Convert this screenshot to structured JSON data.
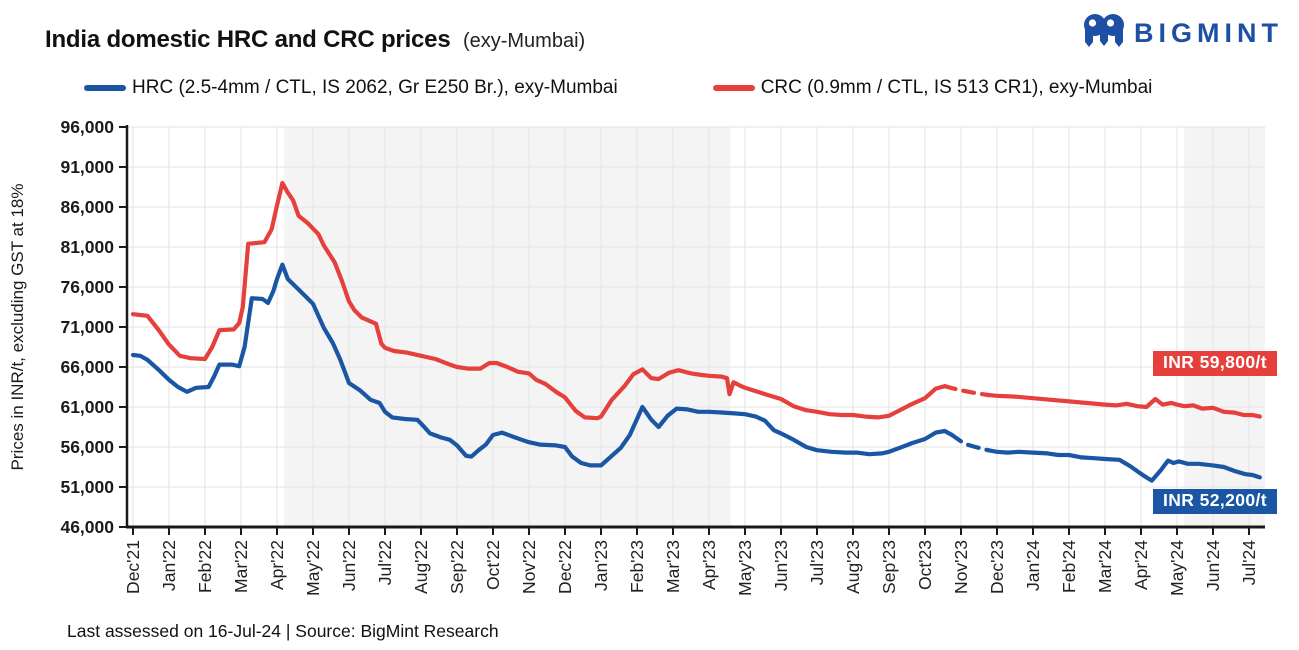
{
  "header": {
    "title": "India domestic HRC and CRC prices",
    "title_suffix": "(exy-Mumbai)",
    "brand": "BIGMINT"
  },
  "legend": {
    "items": [
      {
        "label": "HRC (2.5-4mm / CTL, IS 2062, Gr E250 Br.), exy-Mumbai",
        "color": "#1a56a4"
      },
      {
        "label": "CRC (0.9mm / CTL, IS 513 CR1), exy-Mumbai",
        "color": "#e6403c"
      }
    ]
  },
  "annotations": {
    "crc_label": "INR 59,800/t",
    "hrc_label": "INR 52,200/t"
  },
  "footer": {
    "text": "Last assessed on 16-Jul-24  |  Source: BigMint Research"
  },
  "chart_data": {
    "type": "line",
    "title": "India domestic HRC and CRC prices (exy-Mumbai)",
    "ylabel": "Prices in INR/t, excluding GST at 18%",
    "ylim": [
      46000,
      96000
    ],
    "y_tick_step": 5000,
    "grid": true,
    "legend_position": "top",
    "x_tick_labels": [
      "Dec'21",
      "Jan'22",
      "Feb'22",
      "Mar'22",
      "Apr'22",
      "May'22",
      "Jun'22",
      "Jul'22",
      "Aug'22",
      "Sep'22",
      "Oct'22",
      "Nov'22",
      "Dec'22",
      "Jan'23",
      "Feb'23",
      "Mar'23",
      "Apr'23",
      "May'23",
      "Jun'23",
      "Jul'23",
      "Aug'23",
      "Sep'23",
      "Oct'23",
      "Nov'23",
      "Dec'23",
      "Jan'24",
      "Feb'24",
      "Mar'24",
      "Apr'24",
      "May'24",
      "Jun'24",
      "Jul'24"
    ],
    "shaded_bands_months": [
      [
        4.2,
        16.6
      ],
      [
        29.2,
        31.45
      ]
    ],
    "series": [
      {
        "name": "CRC (0.9mm / CTL, IS 513 CR1), exy-Mumbai",
        "color": "#e6403c",
        "end_label": "INR 59,800/t",
        "dashed_gap_months": [
          22.6,
          23.7
        ],
        "points": [
          [
            0,
            72600
          ],
          [
            0.2,
            72500
          ],
          [
            0.4,
            72400
          ],
          [
            0.7,
            70700
          ],
          [
            1,
            68800
          ],
          [
            1.3,
            67400
          ],
          [
            1.6,
            67100
          ],
          [
            2,
            67000
          ],
          [
            2.2,
            68500
          ],
          [
            2.4,
            70600
          ],
          [
            2.8,
            70700
          ],
          [
            2.95,
            71500
          ],
          [
            3.05,
            73500
          ],
          [
            3.2,
            81400
          ],
          [
            3.65,
            81600
          ],
          [
            3.85,
            83200
          ],
          [
            4,
            86200
          ],
          [
            4.15,
            89000
          ],
          [
            4.3,
            87800
          ],
          [
            4.45,
            86800
          ],
          [
            4.6,
            84900
          ],
          [
            4.85,
            84000
          ],
          [
            5,
            83300
          ],
          [
            5.15,
            82600
          ],
          [
            5.3,
            81200
          ],
          [
            5.5,
            79800
          ],
          [
            5.6,
            79100
          ],
          [
            5.8,
            76800
          ],
          [
            6,
            74200
          ],
          [
            6.15,
            73100
          ],
          [
            6.35,
            72200
          ],
          [
            6.55,
            71800
          ],
          [
            6.75,
            71400
          ],
          [
            6.9,
            68900
          ],
          [
            7,
            68400
          ],
          [
            7.25,
            68000
          ],
          [
            7.6,
            67800
          ],
          [
            8,
            67400
          ],
          [
            8.4,
            67000
          ],
          [
            8.8,
            66300
          ],
          [
            9,
            66000
          ],
          [
            9.3,
            65800
          ],
          [
            9.65,
            65800
          ],
          [
            9.9,
            66500
          ],
          [
            10.1,
            66500
          ],
          [
            10.4,
            66000
          ],
          [
            10.7,
            65400
          ],
          [
            11,
            65200
          ],
          [
            11.2,
            64400
          ],
          [
            11.45,
            63900
          ],
          [
            11.75,
            62900
          ],
          [
            12,
            62200
          ],
          [
            12.3,
            60500
          ],
          [
            12.55,
            59700
          ],
          [
            12.9,
            59600
          ],
          [
            13,
            59800
          ],
          [
            13.3,
            61900
          ],
          [
            13.65,
            63600
          ],
          [
            13.9,
            65100
          ],
          [
            14.15,
            65700
          ],
          [
            14.4,
            64600
          ],
          [
            14.6,
            64500
          ],
          [
            14.9,
            65300
          ],
          [
            15.15,
            65600
          ],
          [
            15.5,
            65200
          ],
          [
            15.8,
            65000
          ],
          [
            16,
            64900
          ],
          [
            16.35,
            64800
          ],
          [
            16.5,
            64600
          ],
          [
            16.57,
            62600
          ],
          [
            16.68,
            64100
          ],
          [
            16.85,
            63700
          ],
          [
            17,
            63400
          ],
          [
            17.35,
            62900
          ],
          [
            17.7,
            62400
          ],
          [
            18,
            62000
          ],
          [
            18.35,
            61100
          ],
          [
            18.7,
            60600
          ],
          [
            19,
            60400
          ],
          [
            19.35,
            60100
          ],
          [
            19.7,
            60000
          ],
          [
            20,
            60000
          ],
          [
            20.35,
            59800
          ],
          [
            20.7,
            59700
          ],
          [
            21,
            59900
          ],
          [
            21.3,
            60600
          ],
          [
            21.65,
            61400
          ],
          [
            22,
            62100
          ],
          [
            22.3,
            63300
          ],
          [
            22.55,
            63600
          ],
          [
            22.8,
            63300
          ],
          [
            23.1,
            63000
          ],
          [
            23.45,
            62700
          ],
          [
            23.75,
            62500
          ],
          [
            24,
            62400
          ],
          [
            24.5,
            62300
          ],
          [
            25,
            62100
          ],
          [
            25.5,
            61900
          ],
          [
            26,
            61700
          ],
          [
            26.5,
            61500
          ],
          [
            27,
            61300
          ],
          [
            27.3,
            61200
          ],
          [
            27.6,
            61400
          ],
          [
            27.9,
            61100
          ],
          [
            28.15,
            61000
          ],
          [
            28.4,
            62000
          ],
          [
            28.6,
            61300
          ],
          [
            28.85,
            61500
          ],
          [
            29,
            61300
          ],
          [
            29.2,
            61100
          ],
          [
            29.45,
            61200
          ],
          [
            29.7,
            60800
          ],
          [
            30,
            60900
          ],
          [
            30.3,
            60400
          ],
          [
            30.6,
            60300
          ],
          [
            30.85,
            60000
          ],
          [
            31.1,
            60000
          ],
          [
            31.3,
            59800
          ]
        ]
      },
      {
        "name": "HRC (2.5-4mm / CTL, IS 2062, Gr E250 Br.), exy-Mumbai",
        "color": "#1a56a4",
        "end_label": "INR 52,200/t",
        "dashed_gap_months": [
          22.75,
          23.7
        ],
        "points": [
          [
            0,
            67500
          ],
          [
            0.2,
            67400
          ],
          [
            0.4,
            66900
          ],
          [
            0.7,
            65700
          ],
          [
            1,
            64400
          ],
          [
            1.25,
            63500
          ],
          [
            1.5,
            62900
          ],
          [
            1.75,
            63400
          ],
          [
            2.1,
            63500
          ],
          [
            2.25,
            64800
          ],
          [
            2.4,
            66300
          ],
          [
            2.75,
            66300
          ],
          [
            2.95,
            66100
          ],
          [
            3.1,
            68500
          ],
          [
            3.3,
            74600
          ],
          [
            3.6,
            74500
          ],
          [
            3.75,
            74000
          ],
          [
            3.9,
            75500
          ],
          [
            4,
            77000
          ],
          [
            4.15,
            78800
          ],
          [
            4.3,
            77000
          ],
          [
            4.55,
            75900
          ],
          [
            4.8,
            74800
          ],
          [
            5,
            73900
          ],
          [
            5.3,
            70900
          ],
          [
            5.55,
            69000
          ],
          [
            5.75,
            67000
          ],
          [
            6,
            64000
          ],
          [
            6.3,
            63100
          ],
          [
            6.6,
            61900
          ],
          [
            6.85,
            61500
          ],
          [
            7,
            60400
          ],
          [
            7.2,
            59700
          ],
          [
            7.55,
            59500
          ],
          [
            7.9,
            59400
          ],
          [
            8.05,
            58700
          ],
          [
            8.25,
            57700
          ],
          [
            8.55,
            57200
          ],
          [
            8.8,
            56900
          ],
          [
            9,
            56200
          ],
          [
            9.25,
            54900
          ],
          [
            9.4,
            54800
          ],
          [
            9.6,
            55600
          ],
          [
            9.8,
            56300
          ],
          [
            10,
            57500
          ],
          [
            10.25,
            57800
          ],
          [
            10.55,
            57300
          ],
          [
            10.8,
            56900
          ],
          [
            11,
            56600
          ],
          [
            11.3,
            56300
          ],
          [
            11.75,
            56200
          ],
          [
            12,
            56000
          ],
          [
            12.2,
            54800
          ],
          [
            12.45,
            54000
          ],
          [
            12.7,
            53700
          ],
          [
            13,
            53700
          ],
          [
            13.25,
            54700
          ],
          [
            13.55,
            55900
          ],
          [
            13.8,
            57500
          ],
          [
            14,
            59500
          ],
          [
            14.15,
            61000
          ],
          [
            14.4,
            59400
          ],
          [
            14.6,
            58500
          ],
          [
            14.85,
            59900
          ],
          [
            15.1,
            60800
          ],
          [
            15.4,
            60700
          ],
          [
            15.7,
            60400
          ],
          [
            16,
            60400
          ],
          [
            16.4,
            60300
          ],
          [
            16.7,
            60200
          ],
          [
            17,
            60100
          ],
          [
            17.3,
            59800
          ],
          [
            17.55,
            59300
          ],
          [
            17.8,
            58100
          ],
          [
            18,
            57700
          ],
          [
            18.35,
            56900
          ],
          [
            18.7,
            56000
          ],
          [
            19,
            55600
          ],
          [
            19.4,
            55400
          ],
          [
            19.8,
            55300
          ],
          [
            20.1,
            55300
          ],
          [
            20.45,
            55100
          ],
          [
            20.8,
            55200
          ],
          [
            21,
            55400
          ],
          [
            21.3,
            55900
          ],
          [
            21.65,
            56500
          ],
          [
            22,
            57000
          ],
          [
            22.3,
            57800
          ],
          [
            22.55,
            58000
          ],
          [
            22.75,
            57500
          ],
          [
            23.1,
            56400
          ],
          [
            23.4,
            56000
          ],
          [
            23.75,
            55600
          ],
          [
            24,
            55400
          ],
          [
            24.3,
            55300
          ],
          [
            24.6,
            55400
          ],
          [
            25,
            55300
          ],
          [
            25.4,
            55200
          ],
          [
            25.7,
            55000
          ],
          [
            26,
            55000
          ],
          [
            26.35,
            54700
          ],
          [
            26.7,
            54600
          ],
          [
            27,
            54500
          ],
          [
            27.4,
            54400
          ],
          [
            27.7,
            53600
          ],
          [
            27.95,
            52800
          ],
          [
            28.15,
            52200
          ],
          [
            28.3,
            51800
          ],
          [
            28.55,
            53100
          ],
          [
            28.75,
            54300
          ],
          [
            28.9,
            54000
          ],
          [
            29.05,
            54200
          ],
          [
            29.3,
            53900
          ],
          [
            29.6,
            53900
          ],
          [
            30,
            53700
          ],
          [
            30.3,
            53500
          ],
          [
            30.6,
            53000
          ],
          [
            30.9,
            52600
          ],
          [
            31.1,
            52500
          ],
          [
            31.3,
            52200
          ]
        ]
      }
    ]
  }
}
